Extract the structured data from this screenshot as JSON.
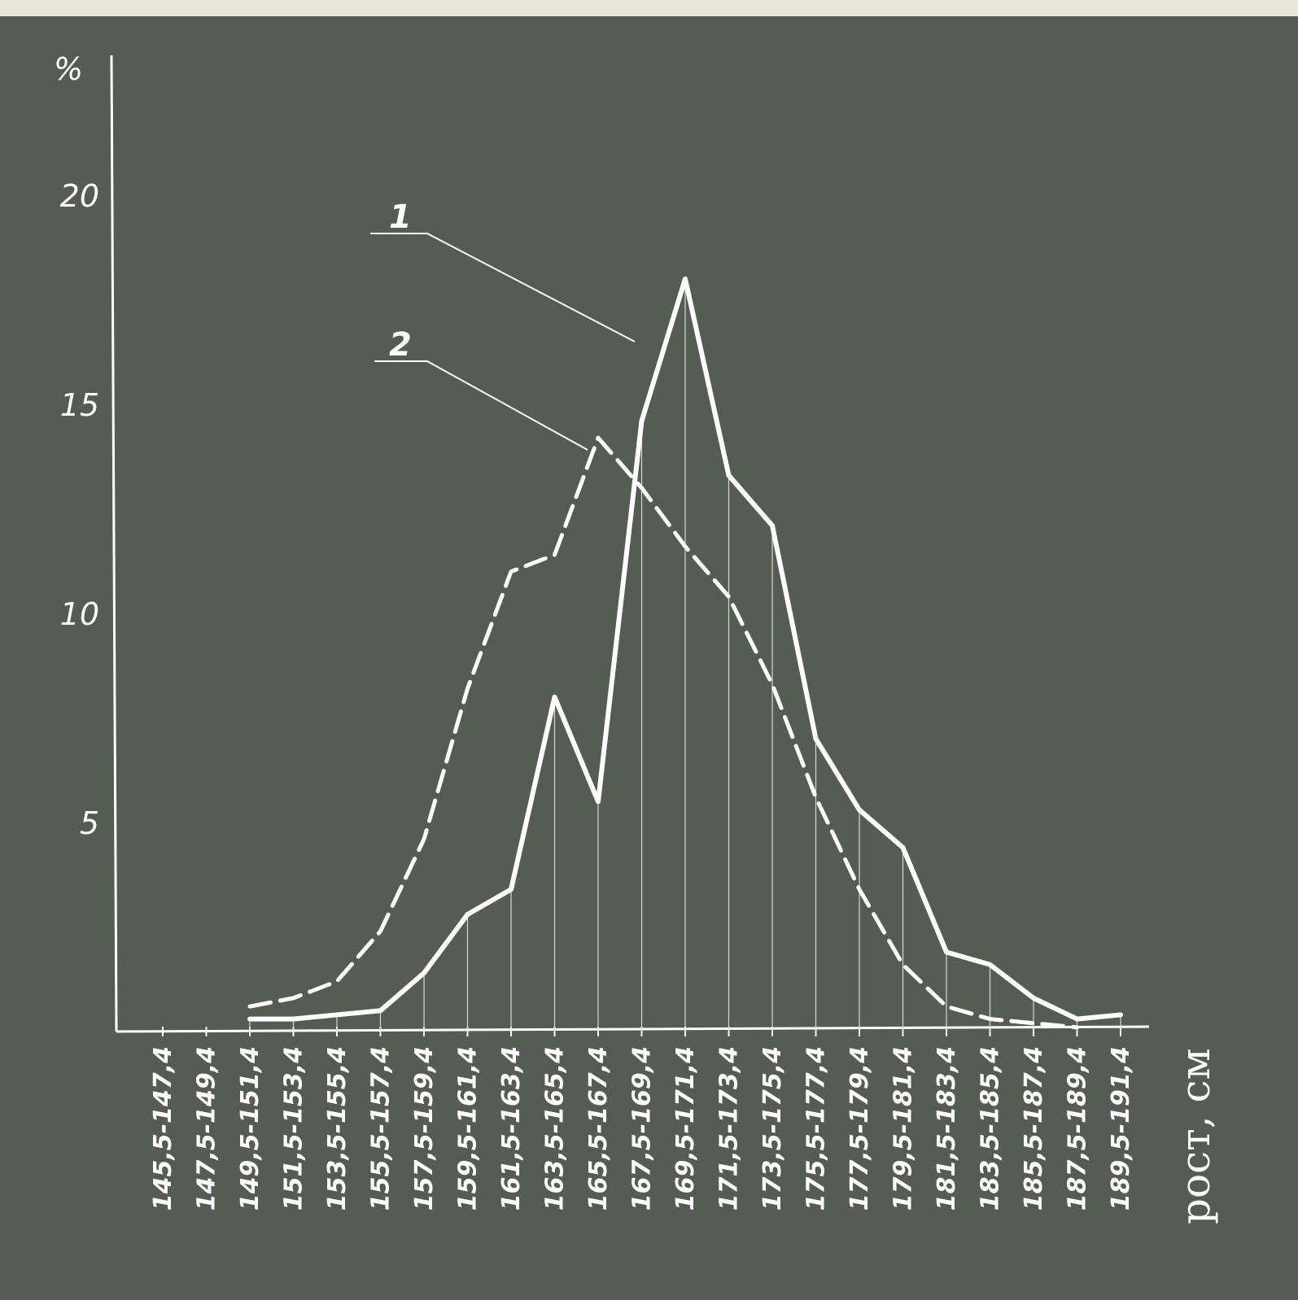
{
  "chart_data": {
    "type": "line",
    "ylabel": "%",
    "xlabel": "рост, см",
    "ylim": [
      0,
      22
    ],
    "yticks": [
      5,
      10,
      15,
      20
    ],
    "categories": [
      "145,5-147,4",
      "147,5-149,4",
      "149,5-151,4",
      "151,5-153,4",
      "153,5-155,4",
      "155,5-157,4",
      "157,5-159,4",
      "159,5-161,4",
      "161,5-163,4",
      "163,5-165,4",
      "165,5-167,4",
      "167,5-169,4",
      "169,5-171,4",
      "171,5-173,4",
      "173,5-175,4",
      "175,5-177,4",
      "177,5-179,4",
      "179,5-181,4",
      "181,5-183,4",
      "183,5-185,4",
      "185,5-187,4",
      "187,5-189,4",
      "189,5-191,4"
    ],
    "grid": false,
    "series": [
      {
        "name": "1",
        "style": "solid",
        "values": [
          null,
          null,
          0.3,
          0.3,
          0.4,
          0.5,
          1.4,
          2.8,
          3.4,
          8.0,
          5.5,
          14.6,
          18.0,
          13.3,
          12.1,
          7.0,
          5.3,
          4.4,
          1.9,
          1.6,
          0.8,
          0.3,
          0.4
        ]
      },
      {
        "name": "2",
        "style": "dashed",
        "values": [
          null,
          null,
          0.6,
          0.8,
          1.2,
          2.4,
          4.6,
          8.2,
          11.0,
          11.4,
          14.2,
          13.0,
          11.6,
          10.4,
          8.3,
          5.6,
          3.4,
          1.6,
          0.6,
          0.3,
          0.2,
          0.1,
          null
        ]
      }
    ],
    "series_labels": [
      "1",
      "2"
    ],
    "colors": {
      "background": "#555c54",
      "line": "#ffffff",
      "page": "#e9e6da"
    }
  }
}
